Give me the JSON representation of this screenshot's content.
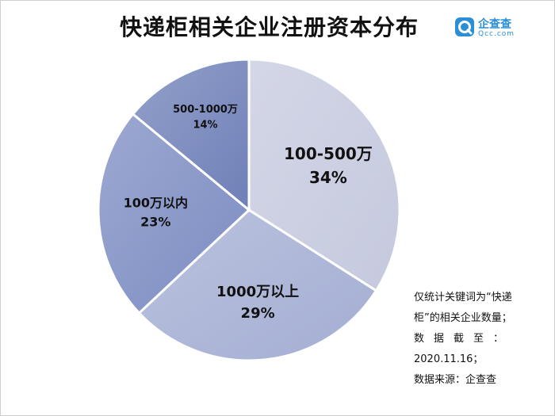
{
  "header": {
    "title": "快递柜相关企业注册资本分布",
    "logo_name": "企查查",
    "logo_domain": "Qcc.com"
  },
  "note": {
    "line1": "仅统计关键词为“快递",
    "line2": "柜”的相关企业数量；",
    "line3": "数据截至：",
    "line4": "2020.11.16；",
    "line5": "数据来源：企查查"
  },
  "colors": {
    "accent": "#2a8fd6",
    "slices": [
      "#c5c9de",
      "#a4aed3",
      "#7c8cc2",
      "#6f80b8"
    ]
  },
  "chart_data": {
    "type": "pie",
    "title": "快递柜相关企业注册资本分布",
    "slices": [
      {
        "label": "100-500万",
        "value": 34,
        "value_label": "34%"
      },
      {
        "label": "1000万以上",
        "value": 29,
        "value_label": "29%"
      },
      {
        "label": "100万以内",
        "value": 23,
        "value_label": "23%"
      },
      {
        "label": "500-1000万",
        "value": 14,
        "value_label": "14%"
      }
    ],
    "start_angle_deg": 0,
    "direction": "clockwise"
  }
}
